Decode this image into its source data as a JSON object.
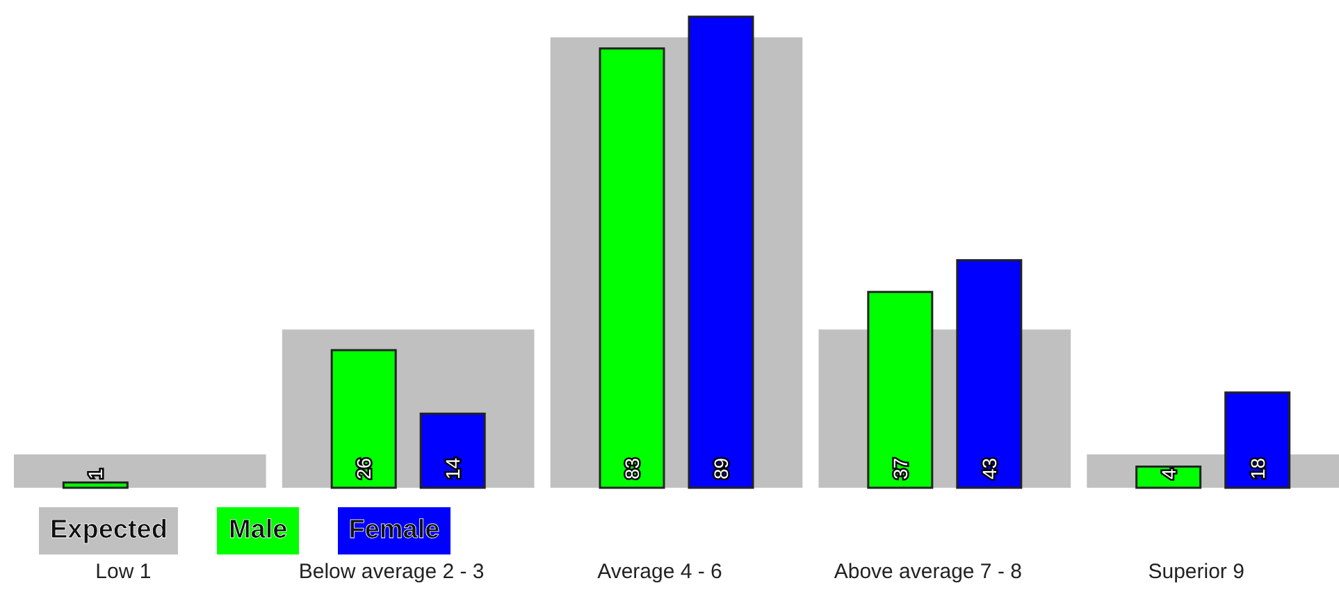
{
  "chart_data": {
    "type": "bar",
    "categories": [
      "Low 1",
      "Below average 2 - 3",
      "Average 4 - 6",
      "Above average 7 - 8",
      "Superior 9"
    ],
    "series": [
      {
        "name": "Expected",
        "color": "#c0c0c0",
        "values": [
          6.3,
          29.9,
          85.1,
          29.9,
          6.3
        ]
      },
      {
        "name": "Male",
        "color": "#00ff00",
        "values": [
          1,
          26,
          83,
          37,
          4
        ],
        "value_labels": [
          "1",
          "26",
          "83",
          "37",
          "4"
        ]
      },
      {
        "name": "Female",
        "color": "#0000ff",
        "values": [
          0,
          14,
          89,
          43,
          18
        ],
        "value_labels": [
          null,
          "14",
          "89",
          "43",
          "18"
        ]
      }
    ],
    "relative": false,
    "legend": "bottom left"
  }
}
